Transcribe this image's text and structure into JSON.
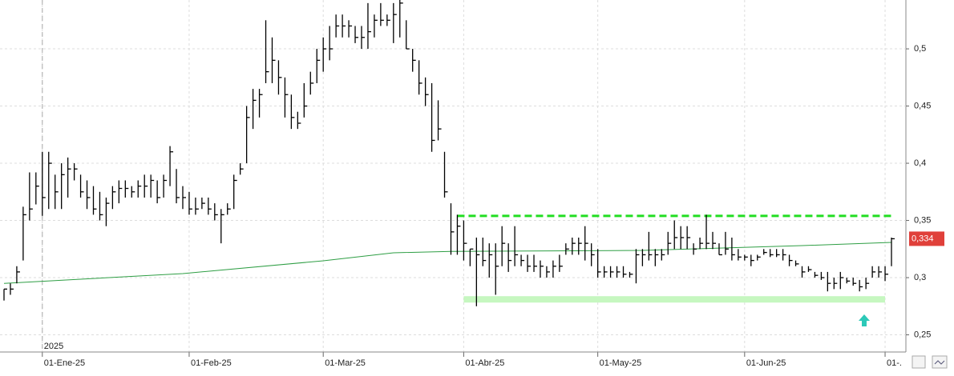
{
  "chart_data": {
    "type": "hlc",
    "categories": [
      null,
      null,
      null,
      null,
      null,
      null,
      "01-Ene-25",
      null,
      null,
      null,
      null,
      null,
      null,
      null,
      null,
      null,
      null,
      null,
      null,
      null,
      null,
      null,
      null,
      null,
      null,
      null,
      null,
      null,
      null,
      "01-Feb-25",
      null,
      null,
      null,
      null,
      null,
      null,
      null,
      null,
      null,
      null,
      null,
      null,
      null,
      null,
      null,
      null,
      null,
      null,
      null,
      null,
      "01-Mar-25",
      null,
      null,
      null,
      null,
      null,
      null,
      null,
      null,
      null,
      null,
      null,
      null,
      null,
      null,
      null,
      null,
      null,
      null,
      null,
      null,
      null,
      "01-Abr-25",
      null,
      null,
      null,
      null,
      null,
      null,
      null,
      null,
      null,
      null,
      null,
      null,
      null,
      null,
      null,
      null,
      null,
      null,
      null,
      null,
      "01-May-25",
      null,
      null,
      null,
      null,
      null,
      null,
      null,
      null,
      null,
      null,
      null,
      null,
      null,
      null,
      null,
      null,
      null,
      null,
      null,
      null,
      null,
      null,
      "01-Jun-25",
      null,
      null,
      null,
      null,
      null,
      null,
      null,
      null,
      null,
      null,
      null,
      null,
      null,
      null,
      null,
      null,
      null,
      null,
      null,
      null,
      null,
      "01-.",
      null
    ],
    "high": [
      0.29,
      0.295,
      0.31,
      0.362,
      0.392,
      0.392,
      0.41,
      0.41,
      0.39,
      0.4,
      0.405,
      0.4,
      0.39,
      0.385,
      0.38,
      0.375,
      0.37,
      0.38,
      0.385,
      0.385,
      0.38,
      0.385,
      0.39,
      0.39,
      0.385,
      0.39,
      0.415,
      0.395,
      0.38,
      0.375,
      0.37,
      0.37,
      0.37,
      0.365,
      0.36,
      0.365,
      0.39,
      0.4,
      0.45,
      0.465,
      0.465,
      0.525,
      0.51,
      0.49,
      0.475,
      0.46,
      0.445,
      0.47,
      0.48,
      0.5,
      0.51,
      0.52,
      0.53,
      0.53,
      0.525,
      0.52,
      0.52,
      0.54,
      0.53,
      0.54,
      0.53,
      0.54,
      0.545,
      0.525,
      0.5,
      0.49,
      0.475,
      0.47,
      0.455,
      0.41,
      0.365,
      0.355,
      0.35,
      0.325,
      0.335,
      0.335,
      0.33,
      0.33,
      0.345,
      0.33,
      0.345,
      0.32,
      0.32,
      0.32,
      0.315,
      0.31,
      0.315,
      0.32,
      0.33,
      0.335,
      0.335,
      0.345,
      0.33,
      0.325,
      0.31,
      0.31,
      0.31,
      0.31,
      0.305,
      0.325,
      0.325,
      0.34,
      0.325,
      0.325,
      0.34,
      0.35,
      0.345,
      0.345,
      0.33,
      0.335,
      0.355,
      0.34,
      0.33,
      0.34,
      0.335,
      0.325,
      0.32,
      0.32,
      0.32,
      0.325,
      0.325,
      0.325,
      0.325,
      0.32,
      0.315,
      0.31,
      0.31,
      0.305,
      0.305,
      0.305,
      0.3,
      0.305,
      0.3,
      0.3,
      0.298,
      0.3,
      0.31,
      0.31,
      0.31,
      0.335
    ],
    "low": [
      0.28,
      0.285,
      0.295,
      0.315,
      0.35,
      0.364,
      0.354,
      0.36,
      0.36,
      0.36,
      0.37,
      0.385,
      0.37,
      0.36,
      0.355,
      0.35,
      0.345,
      0.36,
      0.365,
      0.37,
      0.37,
      0.37,
      0.37,
      0.37,
      0.365,
      0.37,
      0.38,
      0.365,
      0.36,
      0.355,
      0.355,
      0.36,
      0.355,
      0.35,
      0.33,
      0.355,
      0.36,
      0.39,
      0.4,
      0.43,
      0.44,
      0.47,
      0.47,
      0.46,
      0.44,
      0.43,
      0.43,
      0.44,
      0.46,
      0.47,
      0.48,
      0.49,
      0.51,
      0.51,
      0.51,
      0.505,
      0.5,
      0.5,
      0.51,
      0.52,
      0.52,
      0.505,
      0.51,
      0.5,
      0.48,
      0.46,
      0.45,
      0.41,
      0.42,
      0.37,
      0.32,
      0.32,
      0.315,
      0.31,
      0.275,
      0.31,
      0.3,
      0.285,
      0.31,
      0.305,
      0.31,
      0.31,
      0.305,
      0.305,
      0.3,
      0.3,
      0.3,
      0.305,
      0.32,
      0.32,
      0.32,
      0.315,
      0.31,
      0.3,
      0.3,
      0.3,
      0.3,
      0.3,
      0.3,
      0.295,
      0.31,
      0.315,
      0.31,
      0.315,
      0.32,
      0.325,
      0.325,
      0.325,
      0.32,
      0.325,
      0.325,
      0.325,
      0.32,
      0.32,
      0.315,
      0.315,
      0.315,
      0.31,
      0.315,
      0.32,
      0.318,
      0.318,
      0.315,
      0.31,
      0.31,
      0.3,
      0.305,
      0.3,
      0.298,
      0.288,
      0.29,
      0.29,
      0.295,
      0.293,
      0.288,
      0.29,
      0.3,
      0.3,
      0.297,
      0.31
    ],
    "close": [
      0.29,
      0.29,
      0.305,
      0.355,
      0.36,
      0.38,
      0.37,
      0.4,
      0.375,
      0.39,
      0.395,
      0.395,
      0.375,
      0.37,
      0.36,
      0.355,
      0.365,
      0.375,
      0.378,
      0.378,
      0.375,
      0.38,
      0.38,
      0.385,
      0.37,
      0.385,
      0.41,
      0.37,
      0.37,
      0.36,
      0.36,
      0.365,
      0.36,
      0.355,
      0.355,
      0.36,
      0.385,
      0.395,
      0.44,
      0.455,
      0.46,
      0.48,
      0.49,
      0.475,
      0.46,
      0.44,
      0.435,
      0.45,
      0.47,
      0.49,
      0.5,
      0.5,
      0.52,
      0.52,
      0.52,
      0.51,
      0.51,
      0.515,
      0.525,
      0.525,
      0.525,
      0.53,
      0.54,
      0.5,
      0.49,
      0.47,
      0.46,
      0.42,
      0.43,
      0.375,
      0.34,
      0.345,
      0.33,
      0.325,
      0.32,
      0.315,
      0.32,
      0.31,
      0.33,
      0.315,
      0.32,
      0.315,
      0.31,
      0.31,
      0.31,
      0.305,
      0.31,
      0.31,
      0.325,
      0.33,
      0.33,
      0.33,
      0.32,
      0.305,
      0.305,
      0.305,
      0.305,
      0.303,
      0.303,
      0.32,
      0.32,
      0.32,
      0.32,
      0.32,
      0.33,
      0.335,
      0.335,
      0.335,
      0.325,
      0.33,
      0.33,
      0.33,
      0.32,
      0.325,
      0.32,
      0.318,
      0.318,
      0.315,
      0.318,
      0.322,
      0.32,
      0.32,
      0.32,
      0.315,
      0.312,
      0.305,
      0.307,
      0.302,
      0.3,
      0.295,
      0.295,
      0.3,
      0.297,
      0.295,
      0.292,
      0.295,
      0.305,
      0.305,
      0.303,
      0.334
    ],
    "bar_color": "#000000",
    "moving_average": {
      "color": "#2e9e44",
      "x": [
        0,
        28,
        50,
        61,
        70,
        100,
        125,
        139
      ],
      "values": [
        0.295,
        0.3035,
        0.3147,
        0.3217,
        0.323,
        0.3238,
        0.328,
        0.3308
      ]
    },
    "levels": [
      {
        "value": 0.354,
        "from": 71,
        "to": 139,
        "color": "#22dd22",
        "style": "dashed"
      },
      {
        "value": 0.281,
        "from": 72,
        "to": 138,
        "color": "#c6f7c0",
        "style": "band"
      }
    ],
    "last_price": {
      "value": 0.334,
      "label": "0,334"
    },
    "year_label": "2025",
    "ylim": [
      0.235,
      0.5427
    ],
    "yticks": [
      {
        "value": 0.25,
        "label": "0,25"
      },
      {
        "value": 0.3,
        "label": "0,3"
      },
      {
        "value": 0.35,
        "label": "0,35"
      },
      {
        "value": 0.4,
        "label": "0,4"
      },
      {
        "value": 0.45,
        "label": "0,45"
      },
      {
        "value": 0.5,
        "label": "0,5"
      }
    ],
    "grid": true
  }
}
